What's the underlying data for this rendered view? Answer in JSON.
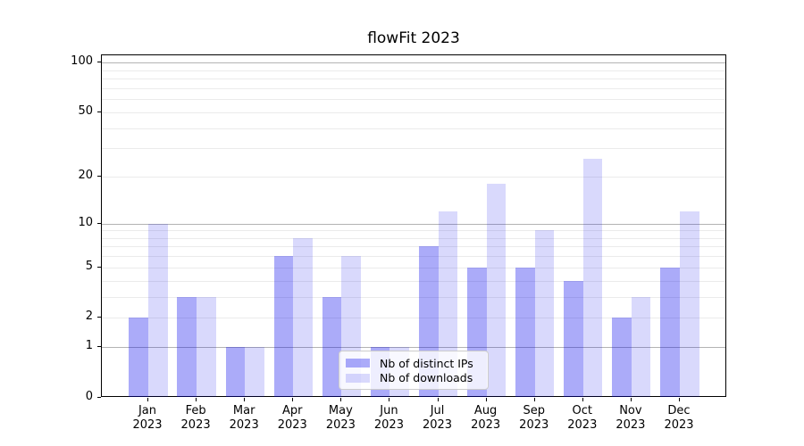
{
  "title": "flowFit 2023",
  "chart_data": {
    "type": "bar",
    "title": "flowFit 2023",
    "categories": [
      "Jan 2023",
      "Feb 2023",
      "Mar 2023",
      "Apr 2023",
      "May 2023",
      "Jun 2023",
      "Jul 2023",
      "Aug 2023",
      "Sep 2023",
      "Oct 2023",
      "Nov 2023",
      "Dec 2023"
    ],
    "series": [
      {
        "name": "Nb of distinct IPs",
        "base_color": "#0000ee",
        "alpha": 0.33,
        "values": [
          2,
          3,
          1,
          6,
          3,
          1,
          7,
          5,
          5,
          4,
          2,
          5
        ]
      },
      {
        "name": "Nb of downloads",
        "base_color": "#0000ee",
        "alpha": 0.15,
        "values": [
          10,
          3,
          1,
          8,
          6,
          1,
          12,
          18,
          9,
          26,
          3,
          12
        ]
      }
    ],
    "xlabel": "",
    "ylabel": "",
    "yscale": "log1p",
    "ylim": [
      0,
      111
    ],
    "ytick_labels": [
      0,
      1,
      2,
      5,
      10,
      20,
      50,
      100
    ],
    "grid_major_values": [
      1,
      10,
      100
    ],
    "grid_minor_values": [
      2,
      3,
      4,
      5,
      6,
      7,
      8,
      9,
      20,
      30,
      40,
      50,
      60,
      70,
      80,
      90
    ],
    "grid": true,
    "legend_position": "lower center",
    "colors": {
      "grid_major": "#b3b3b3",
      "grid_minor": "#ebebeb",
      "spine": "#000000",
      "text": "#000000",
      "legend_border": "#cccccc"
    }
  }
}
